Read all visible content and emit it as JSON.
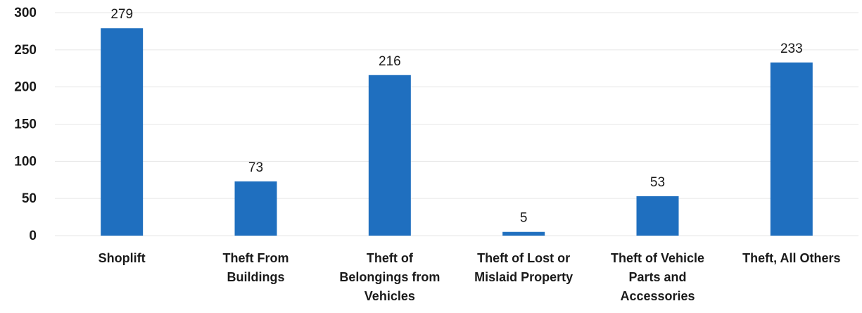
{
  "chart_data": {
    "type": "bar",
    "categories": [
      [
        "Shoplift"
      ],
      [
        "Theft From",
        "Buildings"
      ],
      [
        "Theft of",
        "Belongings from",
        "Vehicles"
      ],
      [
        "Theft of Lost or",
        "Mislaid Property"
      ],
      [
        "Theft of Vehicle",
        "Parts and",
        "Accessories"
      ],
      [
        "Theft, All Others"
      ]
    ],
    "values": [
      279,
      73,
      216,
      5,
      53,
      233
    ],
    "data_labels": [
      "279",
      "73",
      "216",
      "5",
      "53",
      "233"
    ],
    "yticks": [
      "0",
      "50",
      "100",
      "150",
      "200",
      "250",
      "300"
    ],
    "ylim": [
      0,
      300
    ],
    "grid": true,
    "legend": "none",
    "bar_color": "#1f6fbf"
  }
}
